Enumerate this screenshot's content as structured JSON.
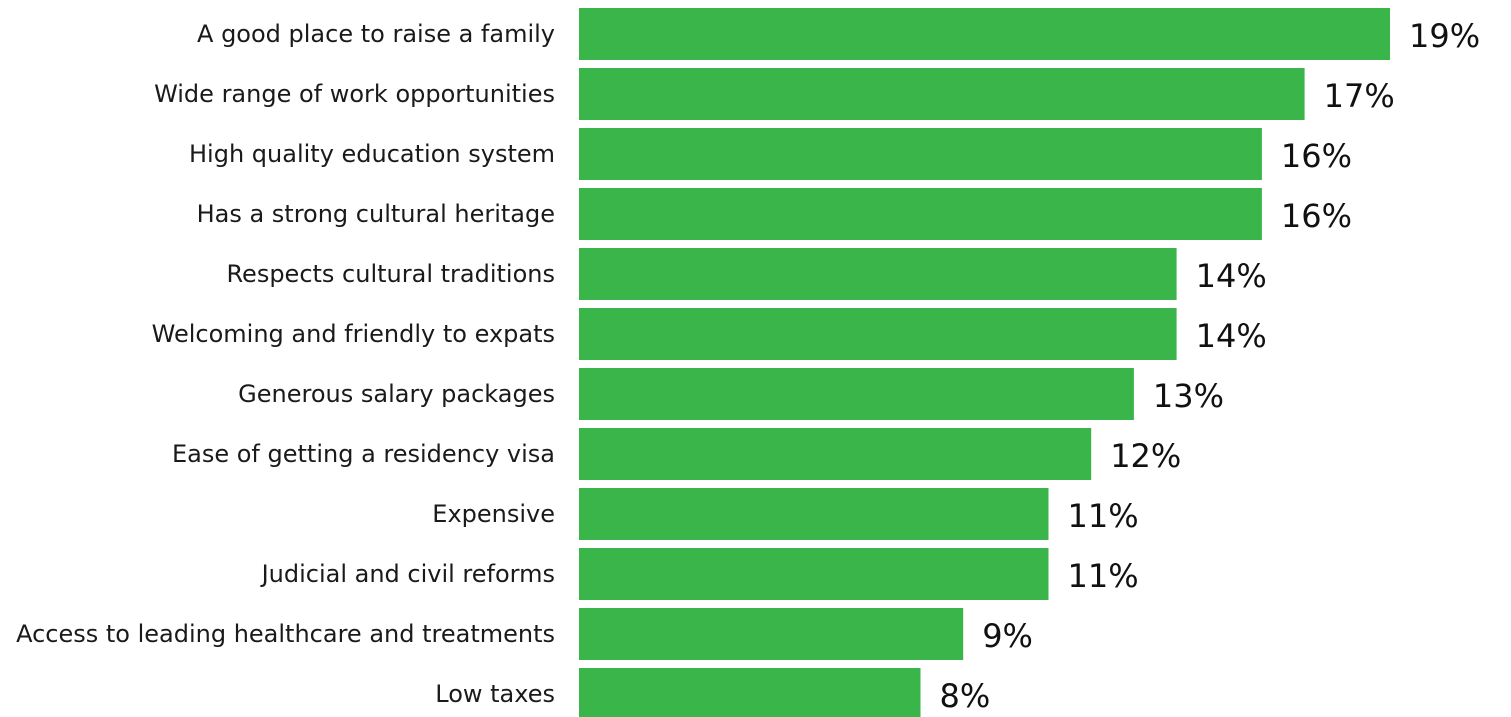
{
  "chart_data": {
    "type": "bar",
    "orientation": "horizontal",
    "categories": [
      "A good place to raise a family",
      "Wide range of work opportunities",
      "High quality education system",
      "Has a strong cultural heritage",
      "Respects cultural traditions",
      "Welcoming and friendly to expats",
      "Generous salary packages",
      "Ease of getting a residency visa",
      "Expensive",
      "Judicial and civil reforms",
      "Access to leading healthcare and treatments",
      "Low taxes"
    ],
    "values": [
      19,
      17,
      16,
      16,
      14,
      14,
      13,
      12,
      11,
      11,
      9,
      8
    ],
    "value_labels": [
      "19%",
      "17%",
      "16%",
      "16%",
      "14%",
      "14%",
      "13%",
      "12%",
      "11%",
      "11%",
      "9%",
      "8%"
    ],
    "xlim": [
      0,
      19
    ],
    "grid": false,
    "legend": "none",
    "bar_color": "#39b54a"
  }
}
